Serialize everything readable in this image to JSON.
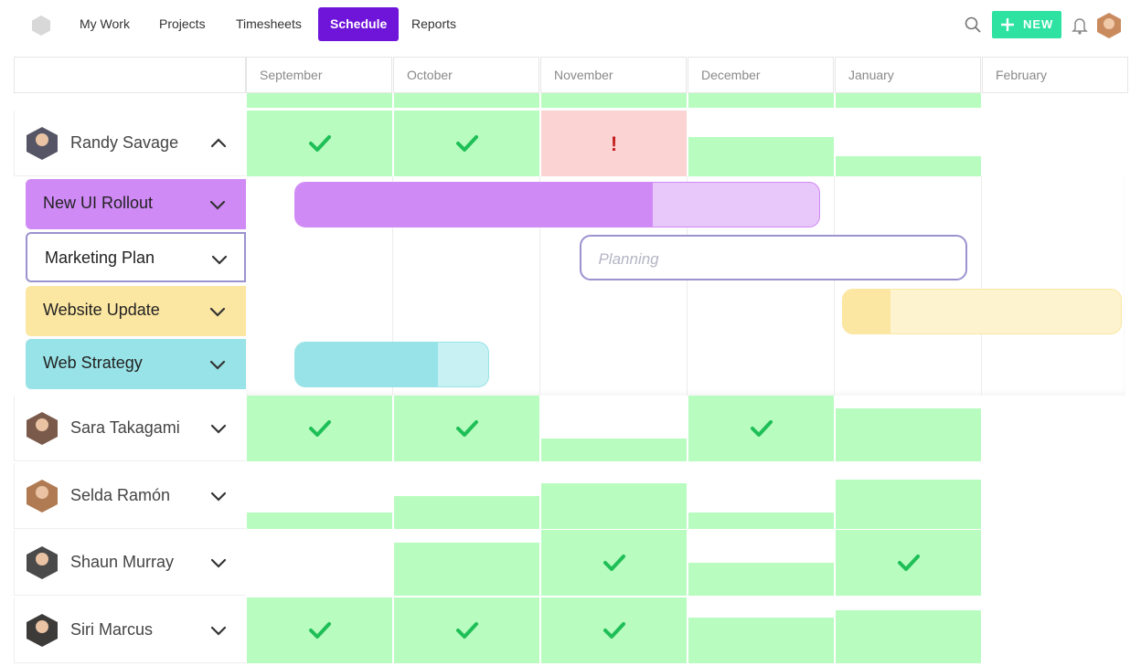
{
  "nav": {
    "items": [
      "My Work",
      "Projects",
      "Timesheets",
      "Schedule",
      "Reports"
    ],
    "active": 3,
    "new_button": "NEW"
  },
  "months": [
    "September",
    "October",
    "November",
    "December",
    "January",
    "February"
  ],
  "over_label": "!",
  "people": [
    {
      "name": "Randy Savage",
      "expanded": true,
      "loads": [
        1,
        1,
        1,
        0.6,
        0.3,
        0
      ],
      "alert_months": [
        2
      ]
    },
    {
      "name": "Sara Takagami",
      "expanded": false,
      "loads": [
        1,
        1,
        0.35,
        1,
        0.8,
        0
      ],
      "alert_months": []
    },
    {
      "name": "Selda Ramón",
      "expanded": false,
      "loads": [
        0.25,
        0.5,
        0.7,
        0.25,
        0.75,
        0
      ],
      "alert_months": []
    },
    {
      "name": "Shaun Murray",
      "expanded": false,
      "loads": [
        0,
        0.8,
        1,
        0.5,
        1,
        0
      ],
      "alert_months": []
    },
    {
      "name": "Siri Marcus",
      "expanded": false,
      "loads": [
        1,
        1,
        1,
        0.7,
        0.8,
        0
      ],
      "alert_months": []
    }
  ],
  "projects": [
    {
      "name": "New UI Rollout",
      "color": "#d08af6",
      "light_color": "#e8c7fa",
      "start": 0.33,
      "end": 3.9,
      "done": 2.76
    },
    {
      "name": "Marketing Plan",
      "outline": "#9a93cf",
      "status": "Planning",
      "start": 2.27,
      "end": 4.9
    },
    {
      "name": "Website Update",
      "color": "#fbe6a2",
      "light_color": "#fdf3cf",
      "start": 4.05,
      "end": 5.95,
      "done": 4.37
    },
    {
      "name": "Web Strategy",
      "color": "#98e3e7",
      "light_color": "#c8f1f3",
      "start": 0.33,
      "end": 1.65,
      "done": 1.3
    }
  ]
}
